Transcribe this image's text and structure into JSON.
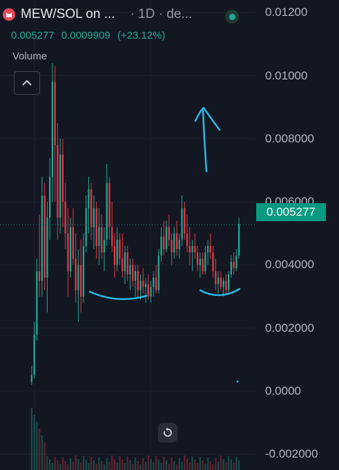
{
  "header": {
    "symbol_title": "MEW/SOL on ...",
    "timeframe": "· 1D · de...",
    "price": "0.005277",
    "change": "0.0009909",
    "change_pct": "(+23.12%)",
    "volume_label": "Volume"
  },
  "price_tag": "0.005277",
  "colors": {
    "background": "#131722",
    "up": "#22ab94",
    "down": "#f23645",
    "annotation": "#2bb8e6"
  },
  "icons": {
    "logo": "cat-logo-icon",
    "status": "live-status-dot-icon",
    "collapse": "chevron-up-icon",
    "reset": "reset-rotate-icon"
  },
  "chart_data": {
    "type": "candlestick",
    "ylim": [
      -0.0025,
      0.0124
    ],
    "yticks": [
      "0.01200",
      "0.01000",
      "0.008000",
      "0.006000",
      "0.004000",
      "0.002000",
      "0.0000",
      "-0.002000"
    ],
    "ytick_values": [
      0.012,
      0.01,
      0.008,
      0.006,
      0.004,
      0.002,
      0.0,
      -0.002
    ],
    "last_price": 0.005277,
    "candles": [
      [
        0.0003,
        0.0008,
        0.0002,
        0.0005
      ],
      [
        0.0005,
        0.0022,
        0.0004,
        0.0018
      ],
      [
        0.0018,
        0.0042,
        0.0016,
        0.0038
      ],
      [
        0.0038,
        0.0056,
        0.003,
        0.0035
      ],
      [
        0.0035,
        0.0068,
        0.003,
        0.0062
      ],
      [
        0.0062,
        0.0066,
        0.0032,
        0.0036
      ],
      [
        0.0036,
        0.006,
        0.0025,
        0.0055
      ],
      [
        0.0055,
        0.0074,
        0.0048,
        0.0068
      ],
      [
        0.0068,
        0.0104,
        0.006,
        0.0098
      ],
      [
        0.0098,
        0.0103,
        0.006,
        0.0078
      ],
      [
        0.0078,
        0.0085,
        0.0048,
        0.0055
      ],
      [
        0.0055,
        0.008,
        0.005,
        0.0075
      ],
      [
        0.0075,
        0.008,
        0.0052,
        0.006
      ],
      [
        0.006,
        0.0066,
        0.0045,
        0.005
      ],
      [
        0.005,
        0.0058,
        0.003,
        0.0038
      ],
      [
        0.0038,
        0.0055,
        0.0036,
        0.0052
      ],
      [
        0.0052,
        0.0058,
        0.004,
        0.0042
      ],
      [
        0.0042,
        0.005,
        0.0028,
        0.0032
      ],
      [
        0.0032,
        0.0045,
        0.0022,
        0.004
      ],
      [
        0.004,
        0.0048,
        0.0025,
        0.003
      ],
      [
        0.003,
        0.005,
        0.0028,
        0.0046
      ],
      [
        0.0046,
        0.0062,
        0.0044,
        0.0058
      ],
      [
        0.0058,
        0.0068,
        0.005,
        0.0064
      ],
      [
        0.0064,
        0.0066,
        0.0048,
        0.0052
      ],
      [
        0.0052,
        0.0062,
        0.0045,
        0.0058
      ],
      [
        0.0058,
        0.006,
        0.0042,
        0.0046
      ],
      [
        0.0046,
        0.0058,
        0.004,
        0.0052
      ],
      [
        0.0052,
        0.0056,
        0.0042,
        0.0044
      ],
      [
        0.0044,
        0.0052,
        0.0038,
        0.0048
      ],
      [
        0.0048,
        0.0072,
        0.0046,
        0.0066
      ],
      [
        0.0066,
        0.0068,
        0.0048,
        0.0052
      ],
      [
        0.0052,
        0.006,
        0.0044,
        0.0046
      ],
      [
        0.0046,
        0.005,
        0.0036,
        0.004
      ],
      [
        0.004,
        0.0052,
        0.0038,
        0.0048
      ],
      [
        0.0048,
        0.005,
        0.004,
        0.0042
      ],
      [
        0.0042,
        0.005,
        0.0036,
        0.0038
      ],
      [
        0.0038,
        0.0046,
        0.0034,
        0.0044
      ],
      [
        0.0044,
        0.0046,
        0.0035,
        0.0037
      ],
      [
        0.0037,
        0.0042,
        0.0032,
        0.004
      ],
      [
        0.004,
        0.0042,
        0.0033,
        0.0035
      ],
      [
        0.0035,
        0.004,
        0.003,
        0.0038
      ],
      [
        0.0038,
        0.004,
        0.003,
        0.0032
      ],
      [
        0.0032,
        0.0037,
        0.0029,
        0.0035
      ],
      [
        0.0035,
        0.0039,
        0.0031,
        0.0033
      ],
      [
        0.0033,
        0.0036,
        0.0028,
        0.0034
      ],
      [
        0.0034,
        0.0037,
        0.0029,
        0.003
      ],
      [
        0.003,
        0.0035,
        0.0028,
        0.0033
      ],
      [
        0.0033,
        0.0038,
        0.003,
        0.0036
      ],
      [
        0.0036,
        0.004,
        0.0031,
        0.0032
      ],
      [
        0.0032,
        0.0045,
        0.0031,
        0.0043
      ],
      [
        0.0043,
        0.0052,
        0.0041,
        0.0049
      ],
      [
        0.0049,
        0.0054,
        0.0043,
        0.0045
      ],
      [
        0.0045,
        0.0054,
        0.0044,
        0.0052
      ],
      [
        0.0052,
        0.0056,
        0.0046,
        0.0048
      ],
      [
        0.0048,
        0.005,
        0.004,
        0.0044
      ],
      [
        0.0044,
        0.0052,
        0.0042,
        0.005
      ],
      [
        0.005,
        0.0054,
        0.0043,
        0.0045
      ],
      [
        0.0045,
        0.005,
        0.0042,
        0.0048
      ],
      [
        0.0048,
        0.0062,
        0.0046,
        0.0058
      ],
      [
        0.0058,
        0.006,
        0.0048,
        0.005
      ],
      [
        0.005,
        0.0056,
        0.0044,
        0.0046
      ],
      [
        0.0046,
        0.0052,
        0.004,
        0.0044
      ],
      [
        0.0044,
        0.0048,
        0.0038,
        0.0046
      ],
      [
        0.0046,
        0.005,
        0.0042,
        0.0044
      ],
      [
        0.0044,
        0.0046,
        0.0038,
        0.004
      ],
      [
        0.004,
        0.0044,
        0.0036,
        0.0042
      ],
      [
        0.0042,
        0.0044,
        0.0037,
        0.0038
      ],
      [
        0.0038,
        0.0046,
        0.0037,
        0.0044
      ],
      [
        0.0044,
        0.0048,
        0.004,
        0.0046
      ],
      [
        0.0046,
        0.005,
        0.0042,
        0.0044
      ],
      [
        0.0044,
        0.0046,
        0.0036,
        0.0038
      ],
      [
        0.0038,
        0.0042,
        0.0032,
        0.0034
      ],
      [
        0.0034,
        0.0038,
        0.0031,
        0.0036
      ],
      [
        0.0036,
        0.0038,
        0.0032,
        0.0033
      ],
      [
        0.0033,
        0.0036,
        0.003,
        0.0035
      ],
      [
        0.0035,
        0.0037,
        0.0031,
        0.0032
      ],
      [
        0.0032,
        0.0038,
        0.0031,
        0.0037
      ],
      [
        0.0037,
        0.0043,
        0.0036,
        0.0041
      ],
      [
        0.0041,
        0.0044,
        0.0037,
        0.0039
      ],
      [
        0.0039,
        0.0045,
        0.0038,
        0.0043
      ],
      [
        0.0043,
        0.0055,
        0.0042,
        0.0053
      ]
    ]
  }
}
